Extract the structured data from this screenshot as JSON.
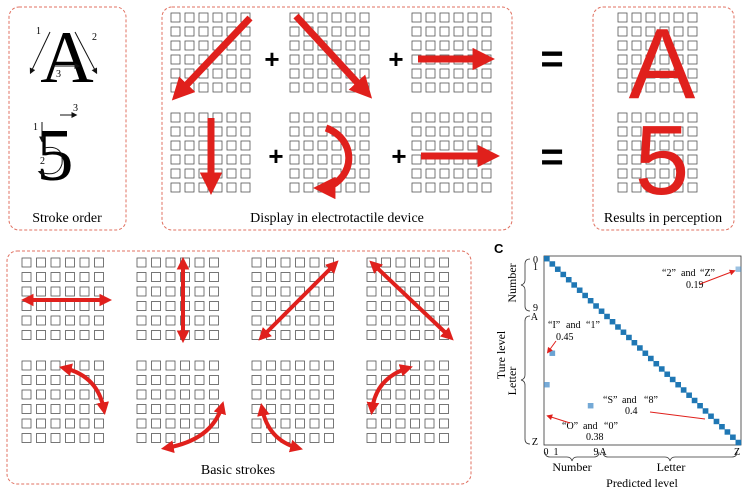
{
  "panels": {
    "stroke_order": {
      "caption": "Stroke order",
      "letter": "A",
      "letter_stroke_numbers": [
        "1",
        "2",
        "3"
      ],
      "digit": "5",
      "digit_stroke_numbers": [
        "1",
        "2",
        "3"
      ]
    },
    "display": {
      "caption": "Display in electrotactile device",
      "plus_sign": "+",
      "equals_sign": "="
    },
    "results": {
      "caption": "Results in perception",
      "letter": "A",
      "digit": "5"
    },
    "basic_strokes": {
      "caption": "Basic strokes"
    },
    "confusion": {
      "panel_letter": "c",
      "y_axis_title": "Ture level",
      "x_axis_title": "Predicted level",
      "y_group_number": "Number",
      "y_group_letter": "Letter",
      "x_group_number": "Number",
      "x_group_letter": "Letter",
      "y_ticks": [
        "0",
        "1",
        "9",
        "A",
        "Z"
      ],
      "x_ticks": [
        "0",
        "1",
        "9",
        "A",
        "Z"
      ],
      "annotations": [
        {
          "pair_a": "“2”",
          "and": "and",
          "pair_b": "“Z”",
          "value": "0.19"
        },
        {
          "pair_a": "“I”",
          "and": "and",
          "pair_b": "“1”",
          "value": "0.45"
        },
        {
          "pair_a": "“S”",
          "and": "and",
          "pair_b": "“8”",
          "value": "0.4"
        },
        {
          "pair_a": "“O”",
          "and": "and",
          "pair_b": "“0”",
          "value": "0.38"
        }
      ]
    }
  },
  "colors": {
    "arrow": "#e0201c",
    "panel_border": "#e07060",
    "grid_square": "#555555",
    "diagonal": "#1f77b4",
    "offdiag": "#9ec9e6"
  },
  "chart_data": {
    "type": "heatmap",
    "categories": [
      "0",
      "1",
      "2",
      "3",
      "4",
      "5",
      "6",
      "7",
      "8",
      "9",
      "A",
      "B",
      "C",
      "D",
      "E",
      "F",
      "G",
      "H",
      "I",
      "J",
      "K",
      "L",
      "M",
      "N",
      "O",
      "P",
      "Q",
      "R",
      "S",
      "T",
      "U",
      "V",
      "W",
      "X",
      "Y",
      "Z"
    ],
    "diagonal_value": 1,
    "highlighted_confusions": [
      {
        "true": "2",
        "predicted": "Z",
        "value": 0.19
      },
      {
        "true": "I",
        "predicted": "1",
        "value": 0.45
      },
      {
        "true": "S",
        "predicted": "8",
        "value": 0.4
      },
      {
        "true": "O",
        "predicted": "0",
        "value": 0.38
      }
    ],
    "xlabel": "Predicted level",
    "ylabel": "Ture level"
  }
}
